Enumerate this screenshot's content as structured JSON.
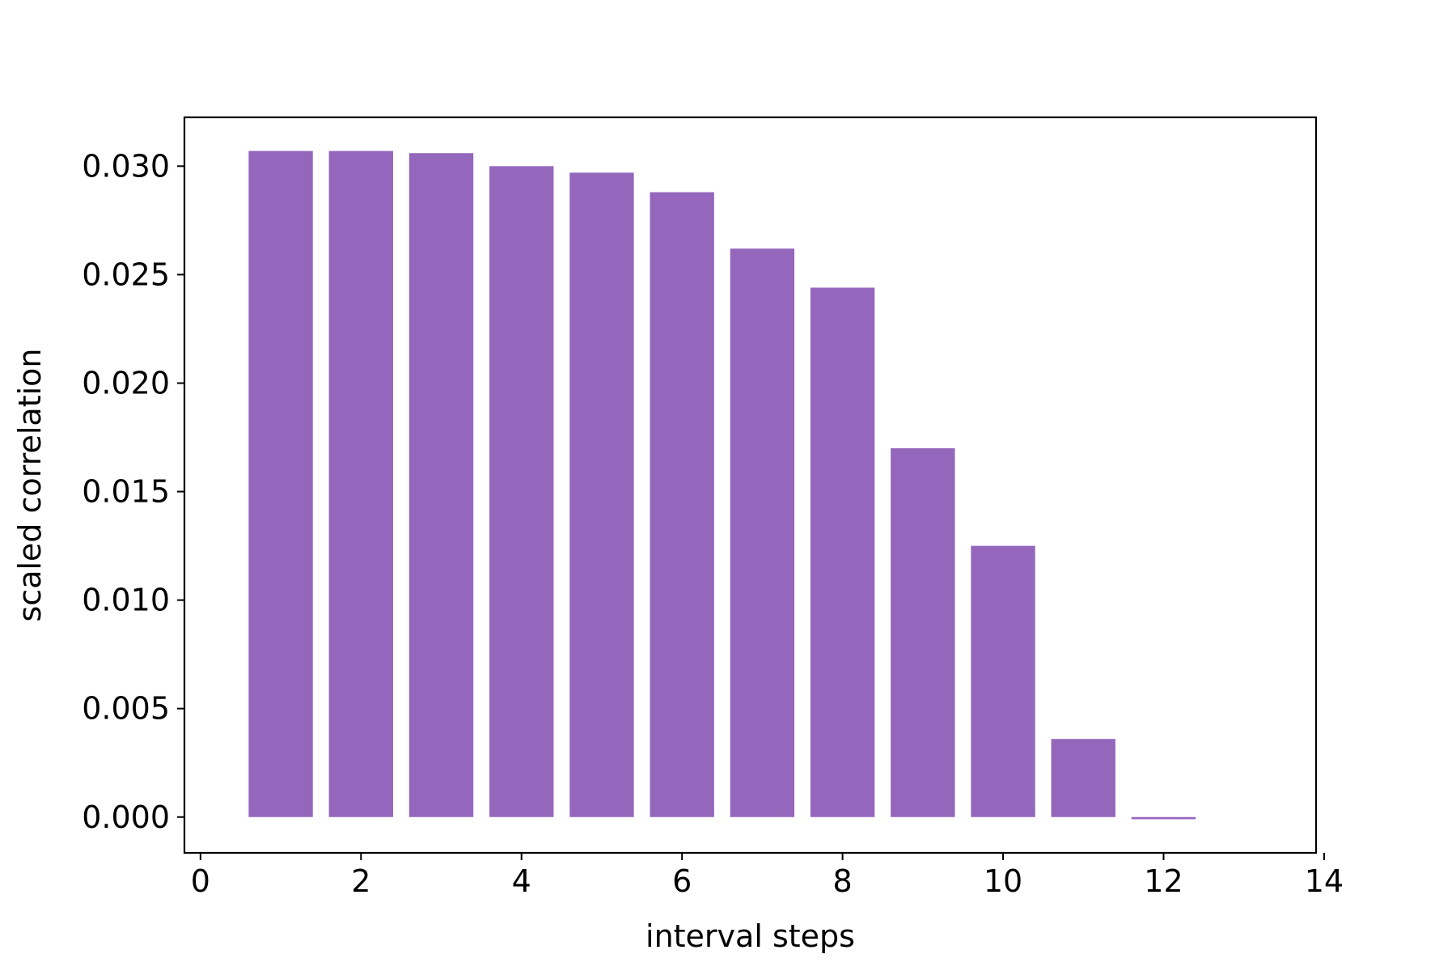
{
  "chart_data": {
    "type": "bar",
    "xlabel": "interval steps",
    "ylabel": "scaled correlation",
    "x": [
      1,
      2,
      3,
      4,
      5,
      6,
      7,
      8,
      9,
      10,
      11,
      12
    ],
    "values": [
      0.0307,
      0.0307,
      0.0306,
      0.03,
      0.0297,
      0.0288,
      0.0262,
      0.0244,
      0.017,
      0.0125,
      0.0036,
      -0.0001
    ],
    "bar_width": 0.8,
    "xlim": [
      -0.2,
      13.9
    ],
    "ylim": [
      -0.00165,
      0.03225
    ],
    "xticks": [
      0,
      2,
      4,
      6,
      8,
      10,
      12,
      14
    ],
    "xtick_labels": [
      "0",
      "2",
      "4",
      "6",
      "8",
      "10",
      "12",
      "14"
    ],
    "yticks": [
      0,
      0.005,
      0.01,
      0.015,
      0.02,
      0.025,
      0.03
    ],
    "ytick_labels": [
      "0.000",
      "0.005",
      "0.010",
      "0.015",
      "0.020",
      "0.025",
      "0.030"
    ],
    "bar_color": "#9467bd",
    "grid": false,
    "legend": "none"
  }
}
